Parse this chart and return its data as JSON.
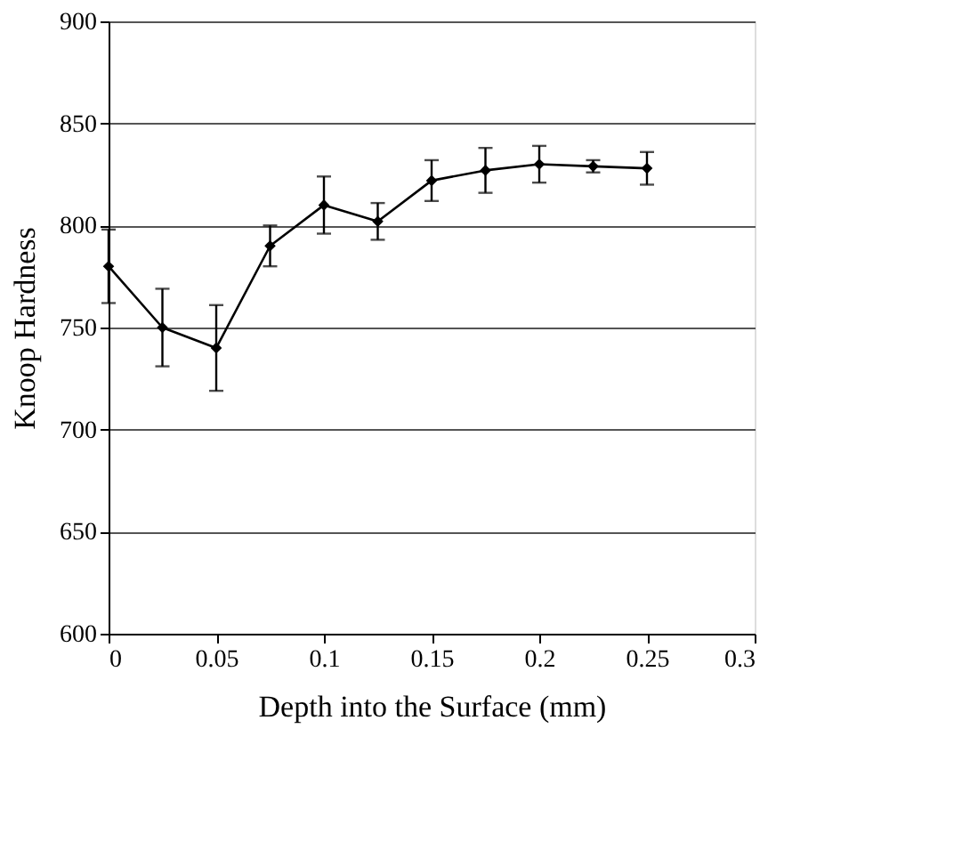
{
  "chart_data": {
    "type": "line",
    "xlabel": "Depth into the Surface (mm)",
    "ylabel": "Knoop Hardness",
    "x": [
      0,
      0.025,
      0.05,
      0.075,
      0.1,
      0.125,
      0.15,
      0.175,
      0.2,
      0.225,
      0.25
    ],
    "series": [
      {
        "color": "#000000",
        "values": [
          780,
          750,
          740,
          790,
          810,
          802,
          822,
          827,
          830,
          829,
          828
        ],
        "errors": [
          18,
          19,
          21,
          10,
          14,
          9,
          10,
          11,
          9,
          3,
          8
        ]
      }
    ],
    "xlim": [
      0,
      0.3
    ],
    "xticks": [
      0,
      0.05,
      0.1,
      0.15,
      0.2,
      0.25,
      0.3
    ],
    "ylim": [
      600,
      900
    ],
    "yticks": [
      600,
      650,
      700,
      750,
      800,
      850,
      900
    ],
    "grid": "y",
    "marker": "diamond",
    "line_style": "solid"
  }
}
